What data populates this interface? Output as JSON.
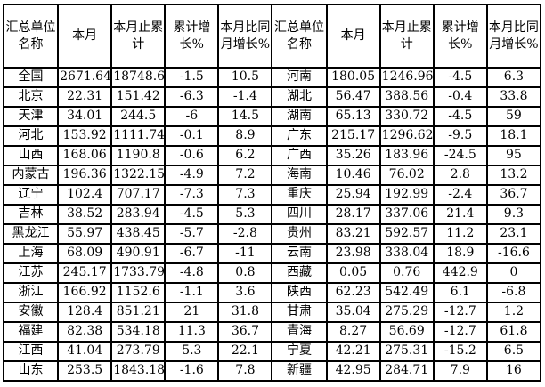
{
  "table": {
    "colors": {
      "border": "#000000",
      "background": "#ffffff",
      "text": "#000000"
    },
    "columns": [
      "汇总单位名称",
      "本月",
      "本月止累计",
      "累计增长%",
      "本月比同月增长%"
    ],
    "left_rows": [
      [
        "全国",
        "2671.64",
        "18748.6",
        "-1.5",
        "10.5"
      ],
      [
        "北京",
        "22.31",
        "151.42",
        "-6.3",
        "-1.4"
      ],
      [
        "天津",
        "34.01",
        "244.5",
        "-6",
        "14.5"
      ],
      [
        "河北",
        "153.92",
        "1111.74",
        "-0.1",
        "8.9"
      ],
      [
        "山西",
        "168.06",
        "1190.8",
        "-0.6",
        "6.2"
      ],
      [
        "内蒙古",
        "196.36",
        "1322.15",
        "-4.9",
        "7.2"
      ],
      [
        "辽宁",
        "102.4",
        "707.17",
        "-7.3",
        "7.3"
      ],
      [
        "吉林",
        "38.52",
        "283.94",
        "-4.5",
        "5.3"
      ],
      [
        "黑龙江",
        "55.97",
        "438.45",
        "-5.7",
        "-2.8"
      ],
      [
        "上海",
        "68.09",
        "490.91",
        "-6.7",
        "-11"
      ],
      [
        "江苏",
        "245.17",
        "1733.79",
        "-4.8",
        "0.8"
      ],
      [
        "浙江",
        "166.92",
        "1152.6",
        "-1.1",
        "3.6"
      ],
      [
        "安徽",
        "128.4",
        "851.21",
        "21",
        "31.8"
      ],
      [
        "福建",
        "82.38",
        "534.18",
        "11.3",
        "36.7"
      ],
      [
        "江西",
        "41.04",
        "273.79",
        "5.3",
        "22.1"
      ],
      [
        "山东",
        "253.5",
        "1843.18",
        "-1.6",
        "7.8"
      ]
    ],
    "right_rows": [
      [
        "河南",
        "180.05",
        "1246.96",
        "-4.5",
        "6.3"
      ],
      [
        "湖北",
        "56.47",
        "388.56",
        "-0.4",
        "33.8"
      ],
      [
        "湖南",
        "65.13",
        "330.72",
        "-4.5",
        "59"
      ],
      [
        "广东",
        "215.17",
        "1296.62",
        "-9.5",
        "18.1"
      ],
      [
        "广西",
        "35.26",
        "183.96",
        "-24.5",
        "95"
      ],
      [
        "海南",
        "10.46",
        "76.02",
        "2.8",
        "13.2"
      ],
      [
        "重庆",
        "25.94",
        "192.99",
        "-2.4",
        "36.7"
      ],
      [
        "四川",
        "28.17",
        "337.06",
        "21.4",
        "9.3"
      ],
      [
        "贵州",
        "83.21",
        "592.57",
        "11.2",
        "23.1"
      ],
      [
        "云南",
        "23.98",
        "338.04",
        "18.9",
        "-16.6"
      ],
      [
        "西藏",
        "0.05",
        "0.76",
        "442.9",
        "0"
      ],
      [
        "陕西",
        "62.23",
        "542.49",
        "6.1",
        "-6.8"
      ],
      [
        "甘肃",
        "35.04",
        "275.29",
        "-12.7",
        "1.2"
      ],
      [
        "青海",
        "8.27",
        "56.69",
        "-12.7",
        "61.8"
      ],
      [
        "宁夏",
        "42.21",
        "275.31",
        "-15.2",
        "6.5"
      ],
      [
        "新疆",
        "42.95",
        "284.71",
        "7.9",
        "16"
      ]
    ]
  }
}
